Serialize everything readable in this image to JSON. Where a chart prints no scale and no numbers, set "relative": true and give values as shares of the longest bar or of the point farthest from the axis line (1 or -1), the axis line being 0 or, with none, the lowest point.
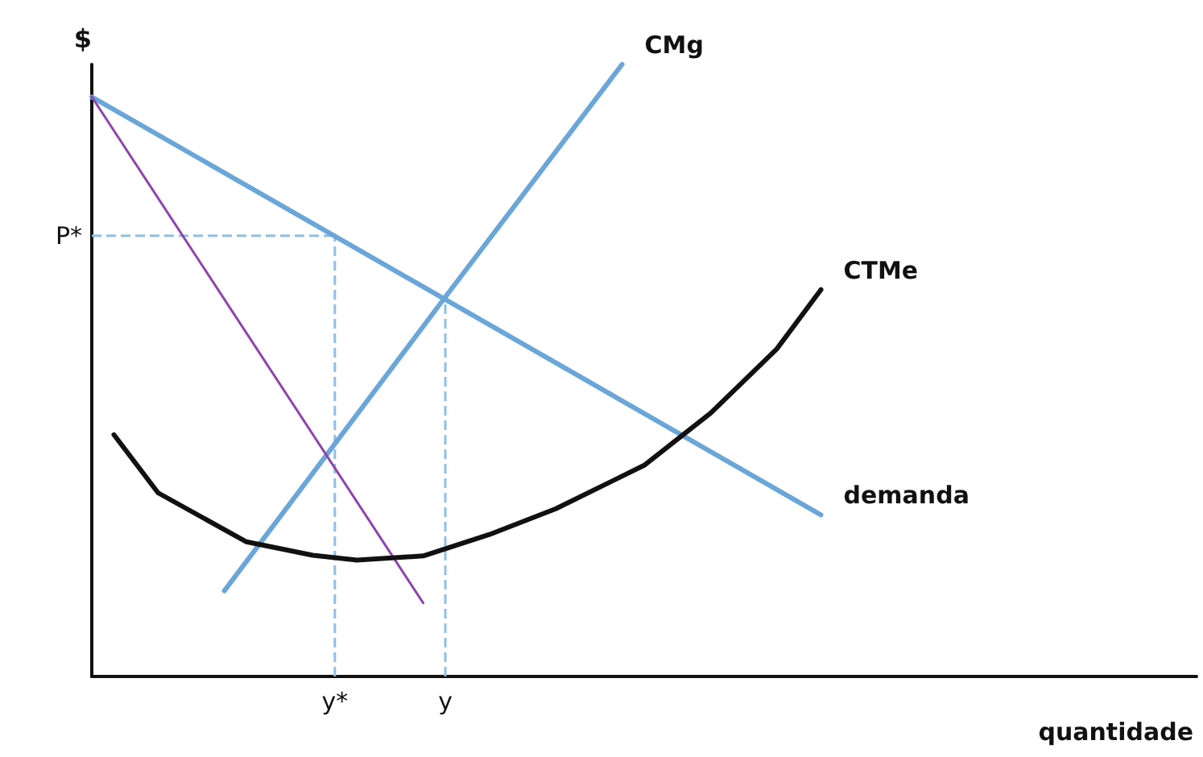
{
  "chart_data": {
    "type": "line",
    "relative": true,
    "xlabel": "quantidade",
    "ylabel": "$",
    "legend": false,
    "marker": "none",
    "categories": [
      null,
      null,
      null,
      null,
      null,
      null,
      null,
      null,
      null,
      null,
      null,
      "y*",
      null,
      null,
      null,
      null,
      "y",
      null,
      null,
      null,
      null,
      null,
      null,
      null,
      null,
      null,
      null,
      null,
      null,
      null,
      null,
      null,
      null,
      null,
      null,
      null,
      null,
      null,
      null,
      null,
      null,
      null,
      null,
      null,
      null,
      null,
      null,
      null,
      null,
      null,
      null
    ],
    "series": [
      {
        "name": "demanda",
        "color": "#6aa6d8",
        "values": [
          0.947,
          null,
          null,
          null,
          null,
          null,
          null,
          null,
          null,
          null,
          null,
          null,
          null,
          null,
          null,
          null,
          0.616,
          null,
          null,
          null,
          null,
          null,
          null,
          null,
          null,
          null,
          null,
          null,
          null,
          null,
          null,
          null,
          null,
          0.264,
          null,
          null,
          null,
          null,
          null,
          null,
          null,
          null,
          null,
          null,
          null,
          null,
          null,
          null,
          null,
          null,
          null
        ]
      },
      {
        "name": "CMg",
        "color": "#6aa6d8",
        "values": [
          null,
          null,
          null,
          null,
          null,
          null,
          0.14,
          null,
          null,
          null,
          null,
          null,
          null,
          null,
          null,
          null,
          0.62,
          null,
          null,
          null,
          null,
          null,
          null,
          null,
          1.0,
          null,
          null,
          null,
          null,
          null,
          null,
          null,
          null,
          null,
          null,
          null,
          null,
          null,
          null,
          null,
          null,
          null,
          null,
          null,
          null,
          null,
          null,
          null,
          null,
          null,
          null
        ]
      },
      {
        "color": "#8e44ad",
        "values": [
          0.947,
          null,
          null,
          null,
          null,
          null,
          null,
          null,
          null,
          null,
          null,
          null,
          null,
          null,
          null,
          0.12,
          null,
          null,
          null,
          null,
          null,
          null,
          null,
          null,
          null,
          null,
          null,
          null,
          null,
          null,
          null,
          null,
          null,
          null,
          null,
          null,
          null,
          null,
          null,
          null,
          null,
          null,
          null,
          null,
          null,
          null,
          null,
          null,
          null,
          null,
          null
        ]
      },
      {
        "name": "CTMe",
        "color": "#111111",
        "values": [
          null,
          0.395,
          null,
          0.3,
          null,
          null,
          null,
          0.22,
          null,
          null,
          0.198,
          null,
          0.19,
          null,
          null,
          0.197,
          null,
          null,
          0.232,
          null,
          null,
          0.274,
          null,
          null,
          null,
          0.345,
          null,
          null,
          0.43,
          null,
          null,
          0.535,
          null,
          0.632,
          null,
          null,
          null,
          null,
          null,
          null,
          null,
          null,
          null,
          null,
          null,
          null,
          null,
          null,
          null,
          null,
          null
        ]
      }
    ],
    "ref_lines": [
      {
        "axis": "y",
        "value": 0.72,
        "label": "P*",
        "color": "#8fbfe6",
        "line_style": "dashed"
      },
      {
        "axis": "x",
        "value": "y*",
        "color": "#8fbfe6",
        "line_style": "dashed"
      },
      {
        "axis": "x",
        "value": "y",
        "color": "#8fbfe6",
        "line_style": "dashed"
      }
    ]
  }
}
